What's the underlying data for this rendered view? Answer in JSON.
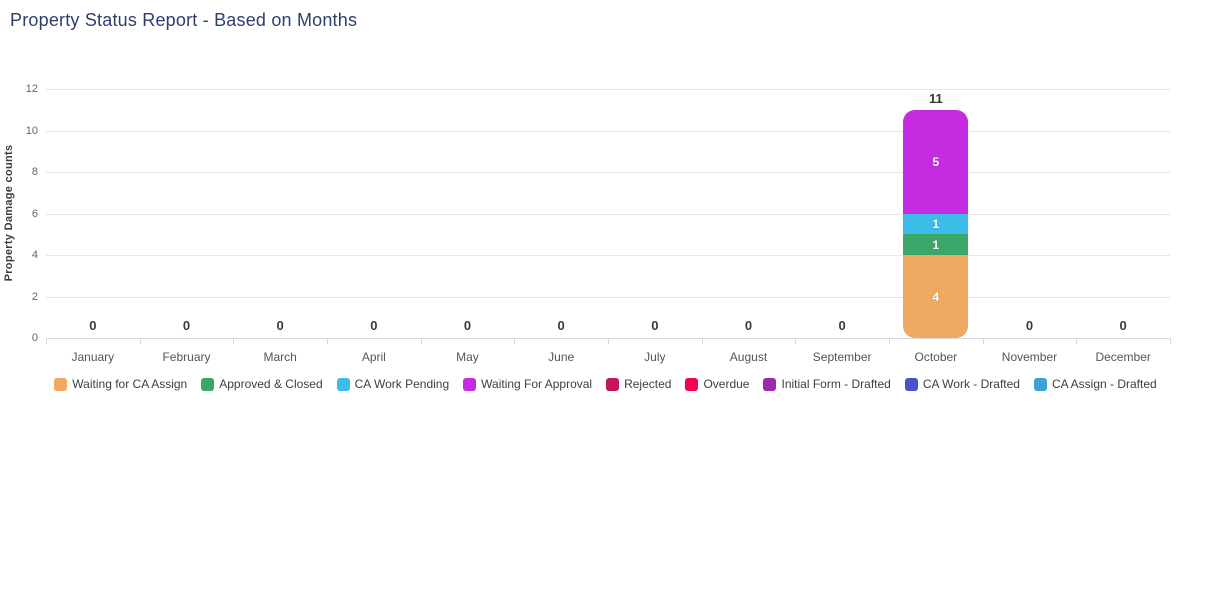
{
  "page": {
    "title": "Property Status Report - Based on Months",
    "title_color": "#2e3f6e"
  },
  "chart_data": {
    "type": "bar",
    "stacked": true,
    "title": "Property Status Report - Based on Months",
    "xlabel": "",
    "ylabel": "Property Damage counts",
    "ylim": [
      0,
      12
    ],
    "ytick_step": 2,
    "yticks": [
      0,
      2,
      4,
      6,
      8,
      10,
      12
    ],
    "grid": true,
    "legend_position": "bottom",
    "categories": [
      "January",
      "February",
      "March",
      "April",
      "May",
      "June",
      "July",
      "August",
      "September",
      "October",
      "November",
      "December"
    ],
    "series": [
      {
        "name": "Waiting for CA Assign",
        "color": "#f0a961",
        "values": [
          0,
          0,
          0,
          0,
          0,
          0,
          0,
          0,
          0,
          4,
          0,
          0
        ]
      },
      {
        "name": "Approved & Closed",
        "color": "#3aa768",
        "values": [
          0,
          0,
          0,
          0,
          0,
          0,
          0,
          0,
          0,
          1,
          0,
          0
        ]
      },
      {
        "name": "CA Work Pending",
        "color": "#3bbde8",
        "values": [
          0,
          0,
          0,
          0,
          0,
          0,
          0,
          0,
          0,
          1,
          0,
          0
        ]
      },
      {
        "name": "Waiting For Approval",
        "color": "#c52be0",
        "values": [
          0,
          0,
          0,
          0,
          0,
          0,
          0,
          0,
          0,
          5,
          0,
          0
        ]
      },
      {
        "name": "Rejected",
        "color": "#c2185b",
        "values": [
          0,
          0,
          0,
          0,
          0,
          0,
          0,
          0,
          0,
          0,
          0,
          0
        ]
      },
      {
        "name": "Overdue",
        "color": "#f50057",
        "values": [
          0,
          0,
          0,
          0,
          0,
          0,
          0,
          0,
          0,
          0,
          0,
          0
        ]
      },
      {
        "name": "Initial Form - Drafted",
        "color": "#9c27b0",
        "values": [
          0,
          0,
          0,
          0,
          0,
          0,
          0,
          0,
          0,
          0,
          0,
          0
        ]
      },
      {
        "name": "CA Work - Drafted",
        "color": "#4355c8",
        "values": [
          0,
          0,
          0,
          0,
          0,
          0,
          0,
          0,
          0,
          0,
          0,
          0
        ]
      },
      {
        "name": "CA Assign - Drafted",
        "color": "#3ba3d3",
        "values": [
          0,
          0,
          0,
          0,
          0,
          0,
          0,
          0,
          0,
          0,
          0,
          0
        ]
      }
    ],
    "totals": [
      0,
      0,
      0,
      0,
      0,
      0,
      0,
      0,
      0,
      11,
      0,
      0
    ]
  }
}
